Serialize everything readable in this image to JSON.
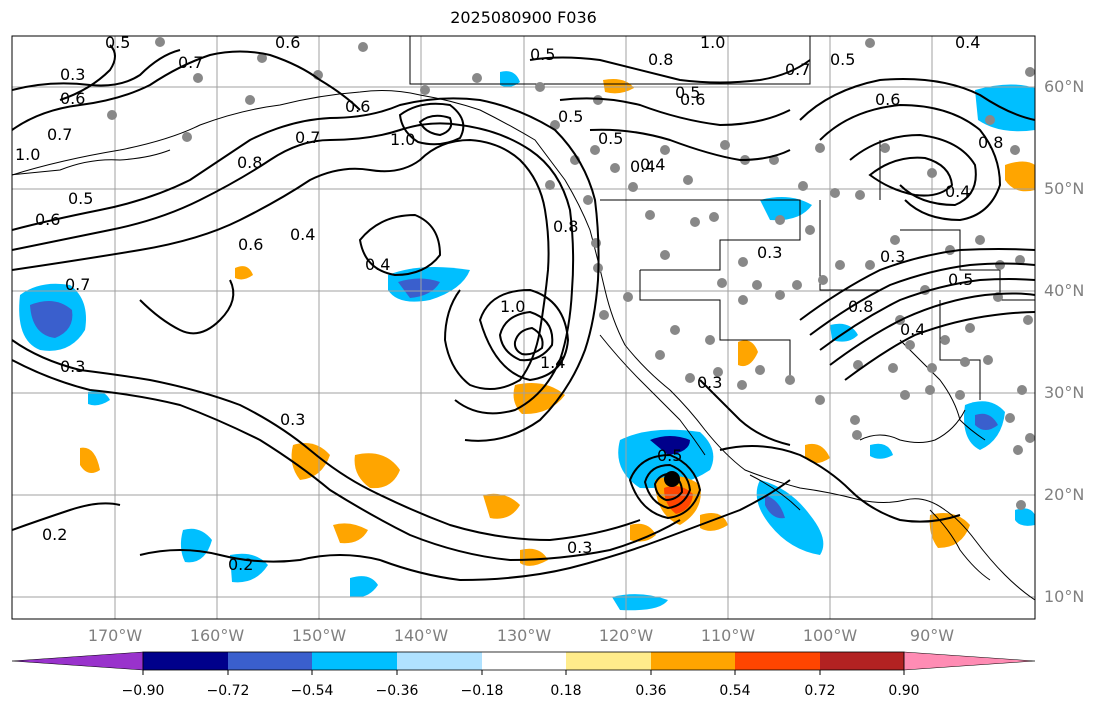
{
  "title": "2025080900 F036",
  "lat_labels": [
    "60°N",
    "50°N",
    "40°N",
    "30°N",
    "20°N",
    "10°N"
  ],
  "lon_labels": [
    "170°W",
    "160°W",
    "150°W",
    "140°W",
    "130°W",
    "120°W",
    "110°W",
    "100°W",
    "90°W"
  ],
  "contour_labels": [
    "0.3",
    "0.7",
    "0.6",
    "0.5",
    "0.6",
    "0.5",
    "0.6",
    "0.7",
    "0.8",
    "0.7",
    "1.0",
    "0.4",
    "0.5",
    "0.6",
    "0.4",
    "0.6",
    "0.4",
    "1.0",
    "1.4",
    "0.3",
    "0.3",
    "0.5",
    "0.3",
    "0.2",
    "0.2",
    "0.3",
    "0.8",
    "1.0",
    "0.6",
    "0.7",
    "0.8",
    "0.4",
    "0.5",
    "0.5",
    "0.8",
    "0.5",
    "0.4",
    "0.3",
    "0.8",
    "0.4",
    "0.5",
    "1.0",
    "0.5",
    "0.4",
    "0.6",
    "0.7",
    "0.3"
  ],
  "colorbar": {
    "ticks": [
      "−0.90",
      "−0.72",
      "−0.54",
      "−0.36",
      "−0.18",
      "0.18",
      "0.36",
      "0.54",
      "0.72",
      "0.90"
    ],
    "colors": [
      "#9932cc",
      "#00008b",
      "#3a5fcd",
      "#00bfff",
      "#b0e2ff",
      "#ffffff",
      "#ffec8b",
      "#ffa500",
      "#ff4500",
      "#b22222",
      "#ff8cb4"
    ]
  },
  "colors": {
    "grid": "#a0a0a0",
    "contour": "#000000",
    "station": "#888888",
    "axis_label": "#808080"
  }
}
